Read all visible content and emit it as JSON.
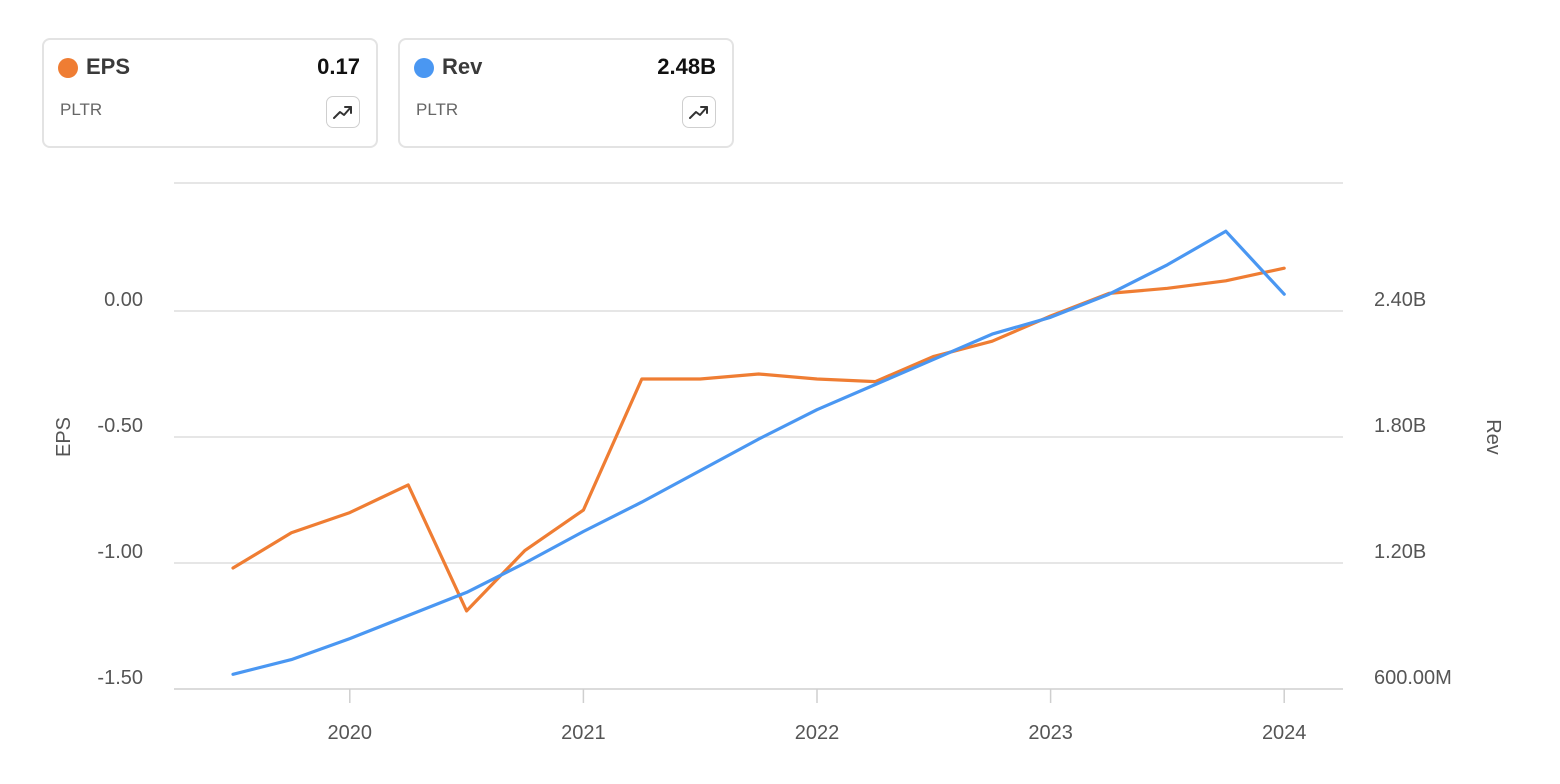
{
  "legend": [
    {
      "name": "EPS",
      "value": "0.17",
      "ticker": "PLTR",
      "color": "#ef7d33",
      "icon": "trend-up-icon"
    },
    {
      "name": "Rev",
      "value": "2.48B",
      "ticker": "PLTR",
      "color": "#4a97f2",
      "icon": "trend-up-icon"
    }
  ],
  "chart_data": {
    "type": "line",
    "x": [
      "2019-07",
      "2019-10",
      "2020-01",
      "2020-04",
      "2020-07",
      "2020-10",
      "2021-01",
      "2021-04",
      "2021-07",
      "2021-10",
      "2022-01",
      "2022-04",
      "2022-07",
      "2022-10",
      "2023-01",
      "2023-04",
      "2023-07",
      "2023-10",
      "2024-01"
    ],
    "xticks": [
      "2020",
      "2021",
      "2022",
      "2023",
      "2024"
    ],
    "yticks_left": [
      "0.00",
      "-0.50",
      "-1.00",
      "-1.50"
    ],
    "yticks_right": [
      "2.40B",
      "1.80B",
      "1.20B",
      "600.00M"
    ],
    "ylabel_left": "EPS",
    "ylabel_right": "Rev",
    "ylim_left": [
      -1.5,
      0.5
    ],
    "ylim_right": [
      0.6,
      3.0
    ],
    "series": [
      {
        "name": "EPS",
        "axis": "left",
        "color": "#ef7d33",
        "values": [
          -1.02,
          -0.88,
          -0.8,
          -0.69,
          -1.19,
          -0.95,
          -0.79,
          -0.27,
          -0.27,
          -0.25,
          -0.27,
          -0.28,
          -0.18,
          -0.12,
          -0.02,
          0.07,
          0.09,
          0.12,
          0.17
        ]
      },
      {
        "name": "Rev",
        "axis": "right",
        "color": "#4a97f2",
        "values": [
          0.67,
          0.74,
          0.84,
          0.95,
          1.06,
          1.2,
          1.35,
          1.49,
          1.64,
          1.79,
          1.93,
          2.05,
          2.17,
          2.29,
          2.37,
          2.48,
          2.62,
          2.78,
          2.48
        ]
      }
    ],
    "grid": true,
    "legend_position": "top-left"
  }
}
